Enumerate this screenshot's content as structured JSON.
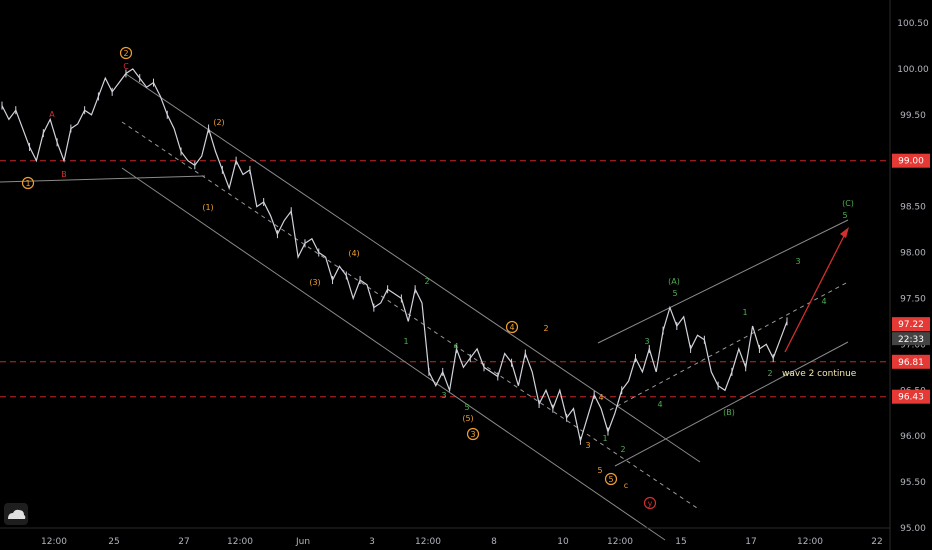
{
  "chart_data": {
    "type": "line",
    "ylim": [
      95.0,
      100.75
    ],
    "y_ticks": [
      "95.00",
      "95.50",
      "96.00",
      "96.50",
      "97.00",
      "97.50",
      "98.00",
      "98.50",
      "99.00",
      "99.50",
      "100.00",
      "100.50"
    ],
    "x_ticks": [
      "12:00",
      "25",
      "27",
      "12:00",
      "Jun",
      "3",
      "12:00",
      "8",
      "10",
      "12:00",
      "15",
      "17",
      "12:00",
      "22"
    ],
    "grid": false,
    "colors": {
      "background": "#000000",
      "price": "#d1d4dc",
      "channel": "#8a8a8a",
      "level": "#c62828",
      "wave_orange": "#f0a030",
      "wave_green": "#4caf50",
      "wave_red": "#d32f2f",
      "badge_red": "#e53935",
      "badge_dark": "#444444"
    },
    "series": [
      {
        "values": [
          99.6,
          99.45,
          99.55,
          99.35,
          99.15,
          99.0,
          99.3,
          99.45,
          99.2,
          99.0,
          99.35,
          99.4,
          99.55,
          99.5,
          99.7,
          99.9,
          99.75,
          99.85,
          99.95,
          100.0,
          99.9,
          99.8,
          99.85,
          99.7,
          99.5,
          99.35,
          99.1,
          99.0,
          98.95,
          99.05,
          99.35,
          99.1,
          98.9,
          98.7,
          99.0,
          98.85,
          98.9,
          98.5,
          98.55,
          98.4,
          98.2,
          98.35,
          98.45,
          97.95,
          98.1,
          98.15,
          98.0,
          97.95,
          97.7,
          97.85,
          97.75,
          97.5,
          97.7,
          97.65,
          97.4,
          97.45,
          97.6,
          97.55,
          97.5,
          97.25,
          97.6,
          97.45,
          96.7,
          96.55,
          96.7,
          96.5,
          96.95,
          96.75,
          96.85,
          96.95,
          96.75,
          96.7,
          96.65,
          96.9,
          96.8,
          96.55,
          96.9,
          96.7,
          96.35,
          96.5,
          96.3,
          96.5,
          96.2,
          96.3,
          95.95,
          96.2,
          96.45,
          96.3,
          96.05,
          96.25,
          96.5,
          96.6,
          96.85,
          96.7,
          96.95,
          96.7,
          97.15,
          97.4,
          97.2,
          97.3,
          96.95,
          97.1,
          97.05,
          96.7,
          96.55,
          96.5,
          96.7,
          96.95,
          96.75,
          97.2,
          96.95,
          97.0,
          96.85,
          97.05,
          97.25
        ]
      }
    ],
    "levels": [
      {
        "value": "99.00"
      },
      {
        "value": "96.81"
      },
      {
        "value": "96.43"
      }
    ],
    "current": {
      "price": "97.22",
      "timer": "22:33"
    },
    "annotations": {
      "wave_labels": [
        {
          "text": "A",
          "color": "red"
        },
        {
          "text": "B",
          "color": "red"
        },
        {
          "text": "C",
          "color": "red"
        },
        {
          "text": "(1)",
          "color": "orange"
        },
        {
          "text": "(2)",
          "color": "orange"
        },
        {
          "text": "(3)",
          "color": "orange"
        },
        {
          "text": "(4)",
          "color": "orange"
        },
        {
          "text": "(5)",
          "color": "orange"
        },
        {
          "text": "1",
          "color": "green"
        },
        {
          "text": "2",
          "color": "green"
        },
        {
          "text": "3",
          "color": "green"
        },
        {
          "text": "4",
          "color": "green"
        },
        {
          "text": "5",
          "color": "green"
        },
        {
          "text": "2",
          "color": "orange"
        },
        {
          "text": "3",
          "color": "orange"
        },
        {
          "text": "4",
          "color": "orange"
        },
        {
          "text": "5",
          "color": "orange"
        },
        {
          "text": "1",
          "color": "green"
        },
        {
          "text": "2",
          "color": "green"
        },
        {
          "text": "3",
          "color": "green"
        },
        {
          "text": "4",
          "color": "green"
        },
        {
          "text": "(A)",
          "color": "green"
        },
        {
          "text": "5",
          "color": "green"
        },
        {
          "text": "(B)",
          "color": "green"
        },
        {
          "text": "1",
          "color": "green"
        },
        {
          "text": "2",
          "color": "green"
        },
        {
          "text": "3",
          "color": "green"
        },
        {
          "text": "4",
          "color": "green"
        },
        {
          "text": "5",
          "color": "green"
        },
        {
          "text": "(C)",
          "color": "green"
        },
        {
          "text": "c",
          "color": "orange"
        }
      ],
      "circled": [
        {
          "text": "1",
          "color": "orange"
        },
        {
          "text": "2",
          "color": "orange"
        },
        {
          "text": "3",
          "color": "orange"
        },
        {
          "text": "4",
          "color": "orange"
        },
        {
          "text": "5",
          "color": "orange"
        },
        {
          "text": "y",
          "color": "red"
        }
      ],
      "note": "wave 2 continue"
    }
  }
}
